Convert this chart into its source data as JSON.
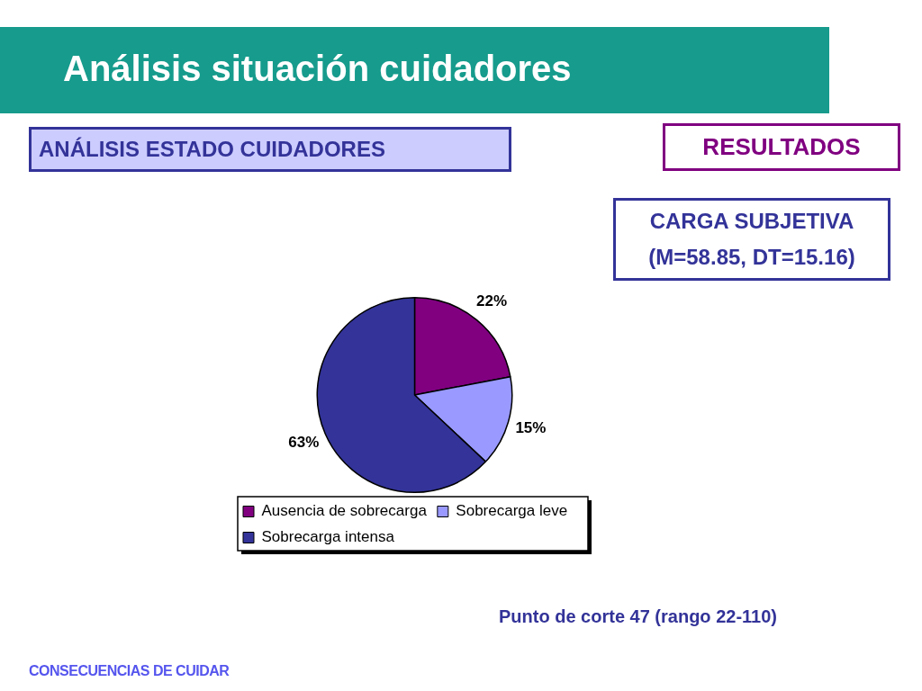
{
  "chart_data": {
    "type": "pie",
    "title": "Análisis situación cuidadores",
    "subtitle": "ANÁLISIS ESTADO CUIDADORES",
    "categories": [
      "Ausencia de sobrecarga",
      "Sobrecarga leve",
      "Sobrecarga intensa"
    ],
    "values": [
      22,
      15,
      63
    ],
    "colors": [
      "#800080",
      "#9999ff",
      "#333399"
    ],
    "value_labels": [
      "22%",
      "15%",
      "63%"
    ],
    "legend": "bottom",
    "annotations": [
      "RESULTADOS",
      "CARGA SUBJETIVA (M=58.85, DT=15.16)",
      "Punto de corte 47 (rango 22-110)",
      "CONSECUENCIAS DE CUIDAR"
    ]
  }
}
